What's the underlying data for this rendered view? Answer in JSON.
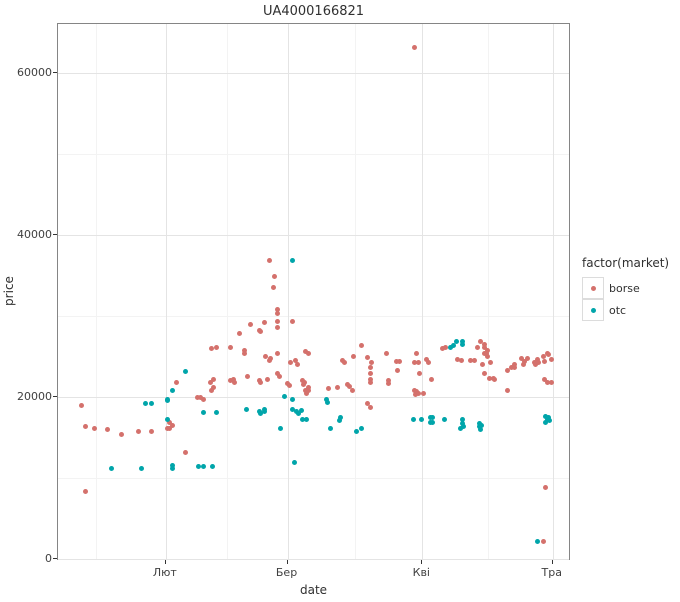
{
  "title": "UA4000166821",
  "axes": {
    "x": {
      "label": "date",
      "domain": [
        -24.8,
        93.2
      ],
      "ticks": [
        {
          "label": "Лют",
          "day": 0
        },
        {
          "label": "Бер",
          "day": 28
        },
        {
          "label": "Кві",
          "day": 59
        },
        {
          "label": "Тра",
          "day": 89
        }
      ],
      "minor_days": [
        -16,
        14,
        43.5,
        74
      ]
    },
    "y": {
      "label": "price",
      "domain": [
        -250,
        66050
      ],
      "ticks": [
        {
          "label": "0",
          "value": 0
        },
        {
          "label": "20000",
          "value": 20000
        },
        {
          "label": "40000",
          "value": 40000
        },
        {
          "label": "60000",
          "value": 60000
        }
      ],
      "minor_values": [
        10000,
        30000,
        50000
      ]
    }
  },
  "legend": {
    "title": "factor(market)",
    "items": [
      {
        "label": "borse",
        "color": "#d4716c"
      },
      {
        "label": "otc",
        "color": "#00a5aa"
      }
    ]
  },
  "chart_data": {
    "type": "scatter",
    "title": "UA4000166821",
    "xlabel": "date",
    "ylabel": "price",
    "ylim": [
      0,
      66000
    ],
    "x_unit": "days relative to Feb 1 (Лют=Feb 1, Бер=Mar 1, Кві=Apr 1, Тра=May 1)",
    "legend_position": "right",
    "grid": true,
    "series": [
      {
        "name": "borse",
        "color": "#d4716c",
        "points": [
          [
            -19.5,
            19010
          ],
          [
            -18.4,
            16300
          ],
          [
            -18.4,
            8270
          ],
          [
            -16.5,
            16050
          ],
          [
            -13.5,
            15930
          ],
          [
            -10.3,
            15310
          ],
          [
            -6.2,
            15680
          ],
          [
            -3.4,
            15680
          ],
          [
            0.5,
            16170
          ],
          [
            0.9,
            16790
          ],
          [
            0.9,
            16170
          ],
          [
            1.6,
            16540
          ],
          [
            2.5,
            21850
          ],
          [
            4.6,
            13090
          ],
          [
            7.3,
            19880
          ],
          [
            8.0,
            19880
          ],
          [
            8.7,
            19750
          ],
          [
            10.3,
            21850
          ],
          [
            10.6,
            25930
          ],
          [
            10.6,
            20740
          ],
          [
            11.0,
            22100
          ],
          [
            11.0,
            21110
          ],
          [
            11.7,
            26050
          ],
          [
            14.9,
            26050
          ],
          [
            14.9,
            21980
          ],
          [
            15.6,
            22220
          ],
          [
            15.8,
            21730
          ],
          [
            17.0,
            27780
          ],
          [
            18.1,
            25680
          ],
          [
            18.1,
            25310
          ],
          [
            18.8,
            22590
          ],
          [
            19.5,
            29010
          ],
          [
            21.6,
            28270
          ],
          [
            21.6,
            21980
          ],
          [
            21.8,
            28030
          ],
          [
            21.8,
            21730
          ],
          [
            22.7,
            29140
          ],
          [
            23.0,
            25060
          ],
          [
            23.4,
            22220
          ],
          [
            23.9,
            36790
          ],
          [
            23.9,
            24450
          ],
          [
            24.1,
            24690
          ],
          [
            24.8,
            33460
          ],
          [
            25.0,
            34820
          ],
          [
            25.7,
            30740
          ],
          [
            25.7,
            30250
          ],
          [
            25.7,
            29260
          ],
          [
            25.7,
            28640
          ],
          [
            25.7,
            25310
          ],
          [
            25.7,
            22840
          ],
          [
            26.2,
            22590
          ],
          [
            28.0,
            21610
          ],
          [
            28.5,
            21360
          ],
          [
            28.7,
            24200
          ],
          [
            29.2,
            29260
          ],
          [
            29.8,
            24450
          ],
          [
            30.3,
            23950
          ],
          [
            31.4,
            21980
          ],
          [
            31.7,
            21480
          ],
          [
            31.9,
            21730
          ],
          [
            32.1,
            25560
          ],
          [
            32.1,
            20740
          ],
          [
            32.4,
            20490
          ],
          [
            32.8,
            25310
          ],
          [
            32.8,
            21110
          ],
          [
            32.8,
            20860
          ],
          [
            37.4,
            20990
          ],
          [
            39.5,
            21110
          ],
          [
            40.6,
            24450
          ],
          [
            41.1,
            24200
          ],
          [
            41.8,
            21480
          ],
          [
            42.2,
            21240
          ],
          [
            42.9,
            20860
          ],
          [
            43.1,
            24940
          ],
          [
            45.0,
            26300
          ],
          [
            46.4,
            24820
          ],
          [
            46.4,
            19140
          ],
          [
            47.1,
            23580
          ],
          [
            47.1,
            22960
          ],
          [
            47.1,
            22100
          ],
          [
            47.1,
            21730
          ],
          [
            47.1,
            18640
          ],
          [
            47.3,
            24200
          ],
          [
            50.7,
            25310
          ],
          [
            51.2,
            21980
          ],
          [
            51.2,
            21610
          ],
          [
            53.0,
            24320
          ],
          [
            53.3,
            23210
          ],
          [
            53.7,
            24320
          ],
          [
            57.1,
            63090
          ],
          [
            57.1,
            24200
          ],
          [
            57.1,
            20860
          ],
          [
            57.4,
            20250
          ],
          [
            57.6,
            25310
          ],
          [
            57.6,
            20620
          ],
          [
            58.1,
            24200
          ],
          [
            58.1,
            20370
          ],
          [
            58.3,
            22960
          ],
          [
            59.2,
            20490
          ],
          [
            59.9,
            24570
          ],
          [
            60.4,
            24200
          ],
          [
            61.1,
            22220
          ],
          [
            63.6,
            25930
          ],
          [
            64.3,
            26050
          ],
          [
            67.2,
            24570
          ],
          [
            67.9,
            24450
          ],
          [
            70.0,
            24450
          ],
          [
            70.9,
            24450
          ],
          [
            71.8,
            26050
          ],
          [
            72.3,
            26790
          ],
          [
            72.8,
            23950
          ],
          [
            73.2,
            26420
          ],
          [
            73.2,
            26050
          ],
          [
            73.2,
            25430
          ],
          [
            73.2,
            22960
          ],
          [
            73.7,
            25310
          ],
          [
            73.9,
            25680
          ],
          [
            74.1,
            24940
          ],
          [
            74.4,
            22340
          ],
          [
            74.6,
            24200
          ],
          [
            75.3,
            22340
          ],
          [
            75.7,
            22100
          ],
          [
            78.5,
            20860
          ],
          [
            78.7,
            23330
          ],
          [
            79.4,
            23580
          ],
          [
            80.1,
            23580
          ],
          [
            80.3,
            23950
          ],
          [
            81.9,
            24690
          ],
          [
            82.2,
            23950
          ],
          [
            82.4,
            24320
          ],
          [
            83.1,
            24690
          ],
          [
            84.9,
            24200
          ],
          [
            85.1,
            23950
          ],
          [
            85.4,
            24570
          ],
          [
            85.8,
            24200
          ],
          [
            86.8,
            25060
          ],
          [
            86.8,
            2100
          ],
          [
            87.0,
            24320
          ],
          [
            87.0,
            22100
          ],
          [
            87.4,
            8770
          ],
          [
            87.7,
            25310
          ],
          [
            87.7,
            21730
          ],
          [
            88.1,
            25190
          ],
          [
            88.8,
            24570
          ],
          [
            88.8,
            21850
          ]
        ]
      },
      {
        "name": "otc",
        "color": "#00a5aa",
        "points": [
          [
            -12.4,
            11230
          ],
          [
            -5.5,
            11230
          ],
          [
            -4.6,
            19140
          ],
          [
            -3.2,
            19140
          ],
          [
            0.5,
            19750
          ],
          [
            0.5,
            19510
          ],
          [
            0.5,
            17280
          ],
          [
            1.6,
            20740
          ],
          [
            1.6,
            11600
          ],
          [
            1.6,
            11230
          ],
          [
            4.6,
            23090
          ],
          [
            7.6,
            11360
          ],
          [
            8.7,
            11360
          ],
          [
            8.7,
            18030
          ],
          [
            10.8,
            11360
          ],
          [
            11.7,
            18030
          ],
          [
            18.6,
            18400
          ],
          [
            21.6,
            18150
          ],
          [
            21.8,
            17900
          ],
          [
            22.7,
            18400
          ],
          [
            22.7,
            18150
          ],
          [
            26.4,
            16050
          ],
          [
            27.3,
            20120
          ],
          [
            29.2,
            36910
          ],
          [
            29.2,
            19630
          ],
          [
            29.2,
            18400
          ],
          [
            29.6,
            11850
          ],
          [
            30.1,
            18150
          ],
          [
            30.5,
            17900
          ],
          [
            31.2,
            18270
          ],
          [
            31.4,
            17160
          ],
          [
            32.4,
            17160
          ],
          [
            37.0,
            19750
          ],
          [
            37.2,
            19380
          ],
          [
            37.9,
            16050
          ],
          [
            39.9,
            17040
          ],
          [
            40.2,
            17410
          ],
          [
            43.8,
            15800
          ],
          [
            45.0,
            16050
          ],
          [
            56.9,
            17160
          ],
          [
            58.8,
            17160
          ],
          [
            60.8,
            17410
          ],
          [
            60.8,
            16910
          ],
          [
            61.3,
            17410
          ],
          [
            61.3,
            16910
          ],
          [
            64.0,
            17280
          ],
          [
            65.4,
            26170
          ],
          [
            66.1,
            26300
          ],
          [
            66.8,
            26790
          ],
          [
            67.7,
            16050
          ],
          [
            68.2,
            26910
          ],
          [
            68.2,
            26540
          ],
          [
            68.2,
            17160
          ],
          [
            68.2,
            16670
          ],
          [
            68.4,
            16300
          ],
          [
            72.1,
            16670
          ],
          [
            72.1,
            16300
          ],
          [
            72.3,
            15930
          ],
          [
            72.5,
            16420
          ],
          [
            85.6,
            2100
          ],
          [
            87.4,
            17530
          ],
          [
            87.4,
            16910
          ],
          [
            87.7,
            17280
          ],
          [
            88.1,
            17410
          ],
          [
            88.3,
            17040
          ]
        ]
      }
    ]
  }
}
